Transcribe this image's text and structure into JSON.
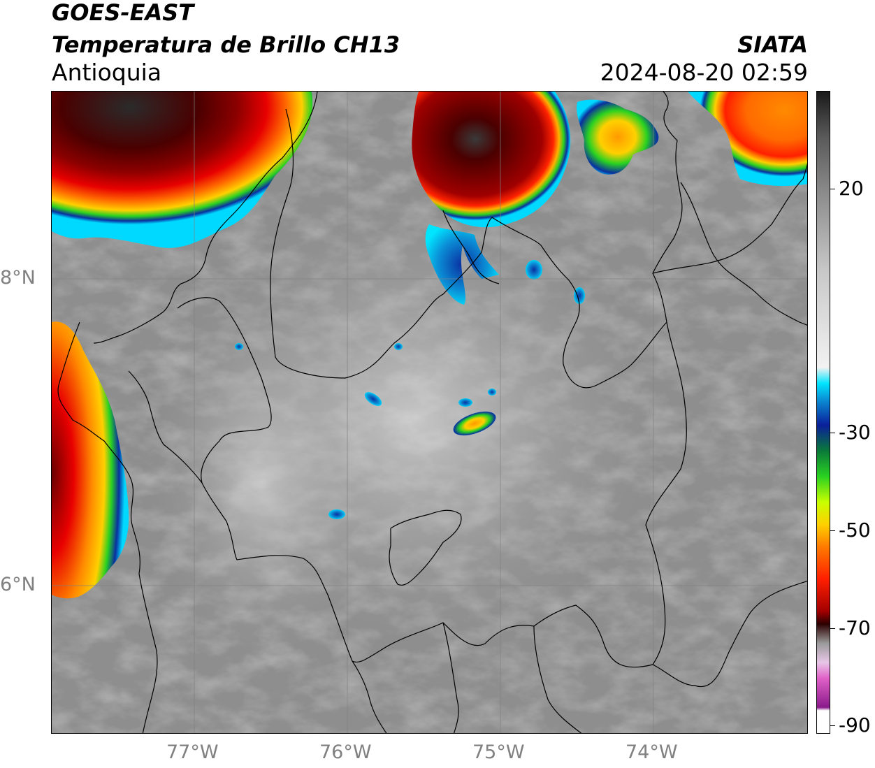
{
  "header": {
    "title_line1": "GOES-EAST",
    "title_line2": "Temperatura de Brillo CH13",
    "region": "Antioquia",
    "organization": "SIATA",
    "datetime": "2024-08-20 02:59"
  },
  "map": {
    "lat_ticks": [
      "8°N",
      "6°N"
    ],
    "lon_ticks": [
      "77°W",
      "76°W",
      "75°W",
      "74°W"
    ],
    "gridlines": true
  },
  "colorbar": {
    "ticks": [
      "20",
      "-30",
      "-50",
      "-70",
      "-90"
    ],
    "stops": [
      {
        "color": "#1a1a1a"
      },
      {
        "color": "#595959"
      },
      {
        "color": "#8c8c8c"
      },
      {
        "color": "#c8c8c8"
      },
      {
        "color": "#f2f2f2"
      },
      {
        "color": "#00e5ff"
      },
      {
        "color": "#0b8fd6"
      },
      {
        "color": "#0a1f9a"
      },
      {
        "color": "#0a7a3a"
      },
      {
        "color": "#29d121"
      },
      {
        "color": "#c8ff00"
      },
      {
        "color": "#ffd000"
      },
      {
        "color": "#ff7a00"
      },
      {
        "color": "#ff1f00"
      },
      {
        "color": "#a30000"
      },
      {
        "color": "#2b0000"
      },
      {
        "color": "#9a9a9a"
      },
      {
        "color": "#e8c7e8"
      },
      {
        "color": "#e060c8"
      },
      {
        "color": "#8a1a8a"
      },
      {
        "color": "#ffffff"
      }
    ]
  }
}
